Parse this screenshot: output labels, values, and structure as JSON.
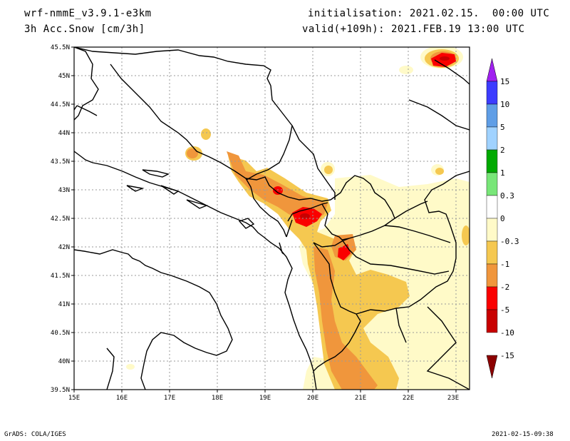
{
  "header": {
    "model": "wrf-nmmE_v3.9.1-e3km",
    "variable": "3h Acc.Snow [cm/3h]",
    "initialisation": "initialisation: 2021.02.15.  00:00 UTC",
    "valid": "valid(+109h): 2021.FEB.19 13:00 UTC"
  },
  "map": {
    "lon_range": [
      15,
      23.3
    ],
    "lat_range": [
      39.5,
      45.5
    ],
    "lon_ticks": [
      "15E",
      "16E",
      "17E",
      "18E",
      "19E",
      "20E",
      "21E",
      "22E",
      "23E"
    ],
    "lat_ticks": [
      "45.5N",
      "45N",
      "44.5N",
      "44N",
      "43.5N",
      "43N",
      "42.5N",
      "42N",
      "41.5N",
      "41N",
      "40.5N",
      "40N",
      "39.5N"
    ],
    "grid": true
  },
  "colorbar": {
    "labels": [
      "15",
      "10",
      "5",
      "2",
      "1",
      "0.3",
      "0",
      "-0.3",
      "-1",
      "-2",
      "-5",
      "-10",
      "-15"
    ],
    "colors": [
      "#a020f0",
      "#3c3cff",
      "#5f9ee6",
      "#a0d2ff",
      "#00aa00",
      "#78e678",
      "#ffffff",
      "#fffac8",
      "#f5c850",
      "#f0963c",
      "#fa0000",
      "#c80000",
      "#8c0000"
    ]
  },
  "footer": {
    "left": "GrADS: COLA/IGES",
    "right": "2021-02-15-09:38"
  }
}
